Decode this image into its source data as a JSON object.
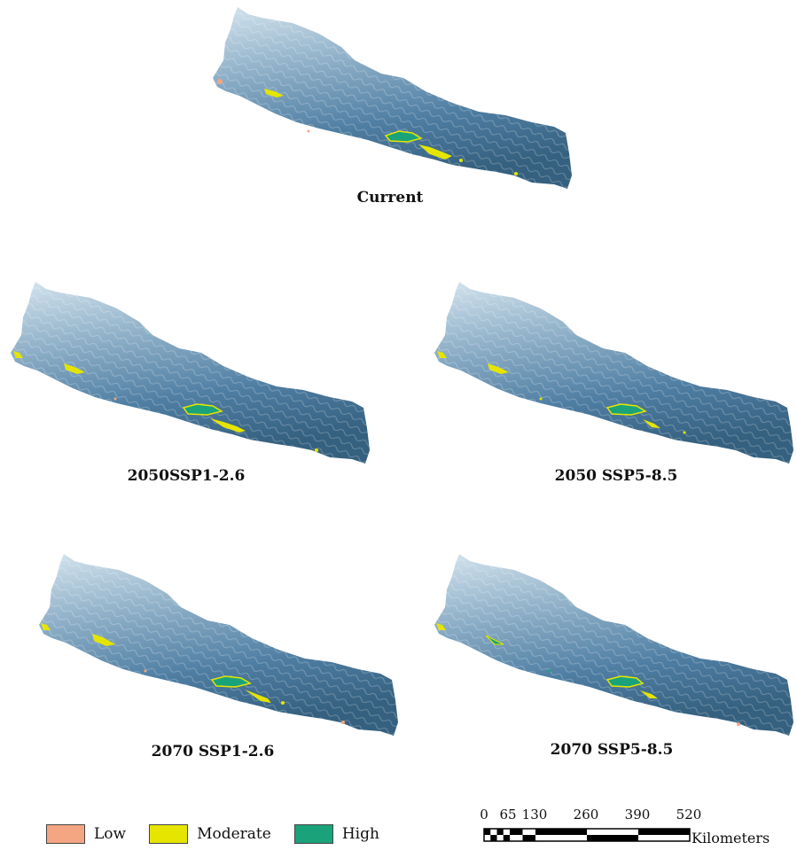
{
  "panels": [
    {
      "id": "current",
      "title": "Current"
    },
    {
      "id": "2050-ssp126",
      "title": "2050SSP1-2.6"
    },
    {
      "id": "2050-ssp585",
      "title": "2050 SSP5-8.5"
    },
    {
      "id": "2070-ssp126",
      "title": "2070 SSP1-2.6"
    },
    {
      "id": "2070-ssp585",
      "title": "2070 SSP5-8.5"
    }
  ],
  "legend": {
    "items": [
      {
        "label": "Low",
        "color": "#f4a582"
      },
      {
        "label": "Moderate",
        "color": "#e5e500"
      },
      {
        "label": "High",
        "color": "#1aa37a"
      }
    ]
  },
  "scalebar": {
    "ticks": [
      "0",
      "65",
      "130",
      "260",
      "390",
      "520"
    ],
    "units": "Kilometers"
  },
  "colors": {
    "terrain_low": "#3f6e94",
    "terrain_high": "#cfe0ea"
  }
}
